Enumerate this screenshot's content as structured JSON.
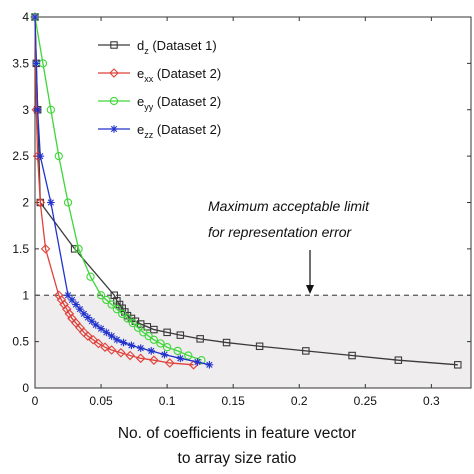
{
  "chart_data": {
    "type": "line",
    "title": "",
    "xlabel": [
      "No. of coefficients in feature vector",
      "to array size ratio"
    ],
    "ylabel": "",
    "xlim": [
      0,
      0.33
    ],
    "ylim": [
      0,
      4
    ],
    "xticks": [
      "0",
      "0.05",
      "0.1",
      "0.15",
      "0.2",
      "0.25",
      "0.3"
    ],
    "xtick_values": [
      0,
      0.05,
      0.1,
      0.15,
      0.2,
      0.25,
      0.3
    ],
    "yticks": [
      "0",
      "0.5",
      "1",
      "1.5",
      "2",
      "2.5",
      "3",
      "3.5",
      "4"
    ],
    "ytick_values": [
      0,
      0.5,
      1,
      1.5,
      2,
      2.5,
      3,
      3.5,
      4
    ],
    "grid": false,
    "legend_position": "top-center",
    "series": [
      {
        "name": "d",
        "name_sub": "z",
        "name_rest": " (Dataset 1)",
        "color": "#3a3a3a",
        "marker": "square",
        "x": [
          0.0,
          0.001,
          0.002,
          0.004,
          0.03,
          0.06,
          0.062,
          0.064,
          0.066,
          0.068,
          0.07,
          0.073,
          0.076,
          0.08,
          0.085,
          0.09,
          0.1,
          0.11,
          0.125,
          0.145,
          0.17,
          0.205,
          0.24,
          0.275,
          0.32
        ],
        "y": [
          4.0,
          3.5,
          3.0,
          2.0,
          1.5,
          1.0,
          0.94,
          0.9,
          0.86,
          0.82,
          0.78,
          0.75,
          0.72,
          0.69,
          0.66,
          0.63,
          0.6,
          0.57,
          0.53,
          0.49,
          0.45,
          0.4,
          0.35,
          0.3,
          0.25
        ]
      },
      {
        "name": "e",
        "name_sub": "xx",
        "name_rest": " (Dataset 2)",
        "color": "#e0423a",
        "marker": "diamond",
        "x": [
          0.0,
          0.001,
          0.002,
          0.004,
          0.008,
          0.018,
          0.02,
          0.022,
          0.024,
          0.026,
          0.028,
          0.031,
          0.034,
          0.037,
          0.04,
          0.044,
          0.048,
          0.053,
          0.058,
          0.065,
          0.072,
          0.08,
          0.09,
          0.102,
          0.12
        ],
        "y": [
          4.0,
          3.0,
          2.5,
          2.0,
          1.5,
          1.0,
          0.95,
          0.9,
          0.85,
          0.8,
          0.75,
          0.7,
          0.65,
          0.6,
          0.56,
          0.52,
          0.48,
          0.44,
          0.41,
          0.38,
          0.35,
          0.32,
          0.3,
          0.27,
          0.25
        ]
      },
      {
        "name": "e",
        "name_sub": "yy",
        "name_rest": " (Dataset 2)",
        "color": "#3fd63a",
        "marker": "circle",
        "x": [
          0.0,
          0.006,
          0.012,
          0.018,
          0.025,
          0.033,
          0.042,
          0.05,
          0.054,
          0.058,
          0.062,
          0.066,
          0.07,
          0.074,
          0.078,
          0.082,
          0.086,
          0.09,
          0.095,
          0.1,
          0.108,
          0.116,
          0.126
        ],
        "y": [
          4.0,
          3.5,
          3.0,
          2.5,
          2.0,
          1.5,
          1.2,
          1.0,
          0.95,
          0.9,
          0.85,
          0.8,
          0.75,
          0.7,
          0.65,
          0.6,
          0.56,
          0.52,
          0.48,
          0.44,
          0.4,
          0.35,
          0.3
        ]
      },
      {
        "name": "e",
        "name_sub": "zz",
        "name_rest": " (Dataset 2)",
        "color": "#2233cc",
        "marker": "star",
        "x": [
          0.0,
          0.001,
          0.002,
          0.004,
          0.012,
          0.025,
          0.028,
          0.031,
          0.034,
          0.037,
          0.04,
          0.043,
          0.046,
          0.05,
          0.054,
          0.058,
          0.062,
          0.067,
          0.073,
          0.08,
          0.088,
          0.098,
          0.11,
          0.123,
          0.132
        ],
        "y": [
          4.0,
          3.5,
          3.0,
          2.5,
          2.0,
          1.0,
          0.95,
          0.9,
          0.85,
          0.8,
          0.76,
          0.72,
          0.68,
          0.64,
          0.6,
          0.56,
          0.52,
          0.49,
          0.46,
          0.43,
          0.4,
          0.36,
          0.32,
          0.28,
          0.25
        ]
      }
    ],
    "threshold": {
      "value": 1,
      "color": "#555555",
      "shade": "#efedee"
    },
    "annotation": {
      "lines": [
        "Maximum acceptable limit",
        "for representation error"
      ]
    }
  }
}
